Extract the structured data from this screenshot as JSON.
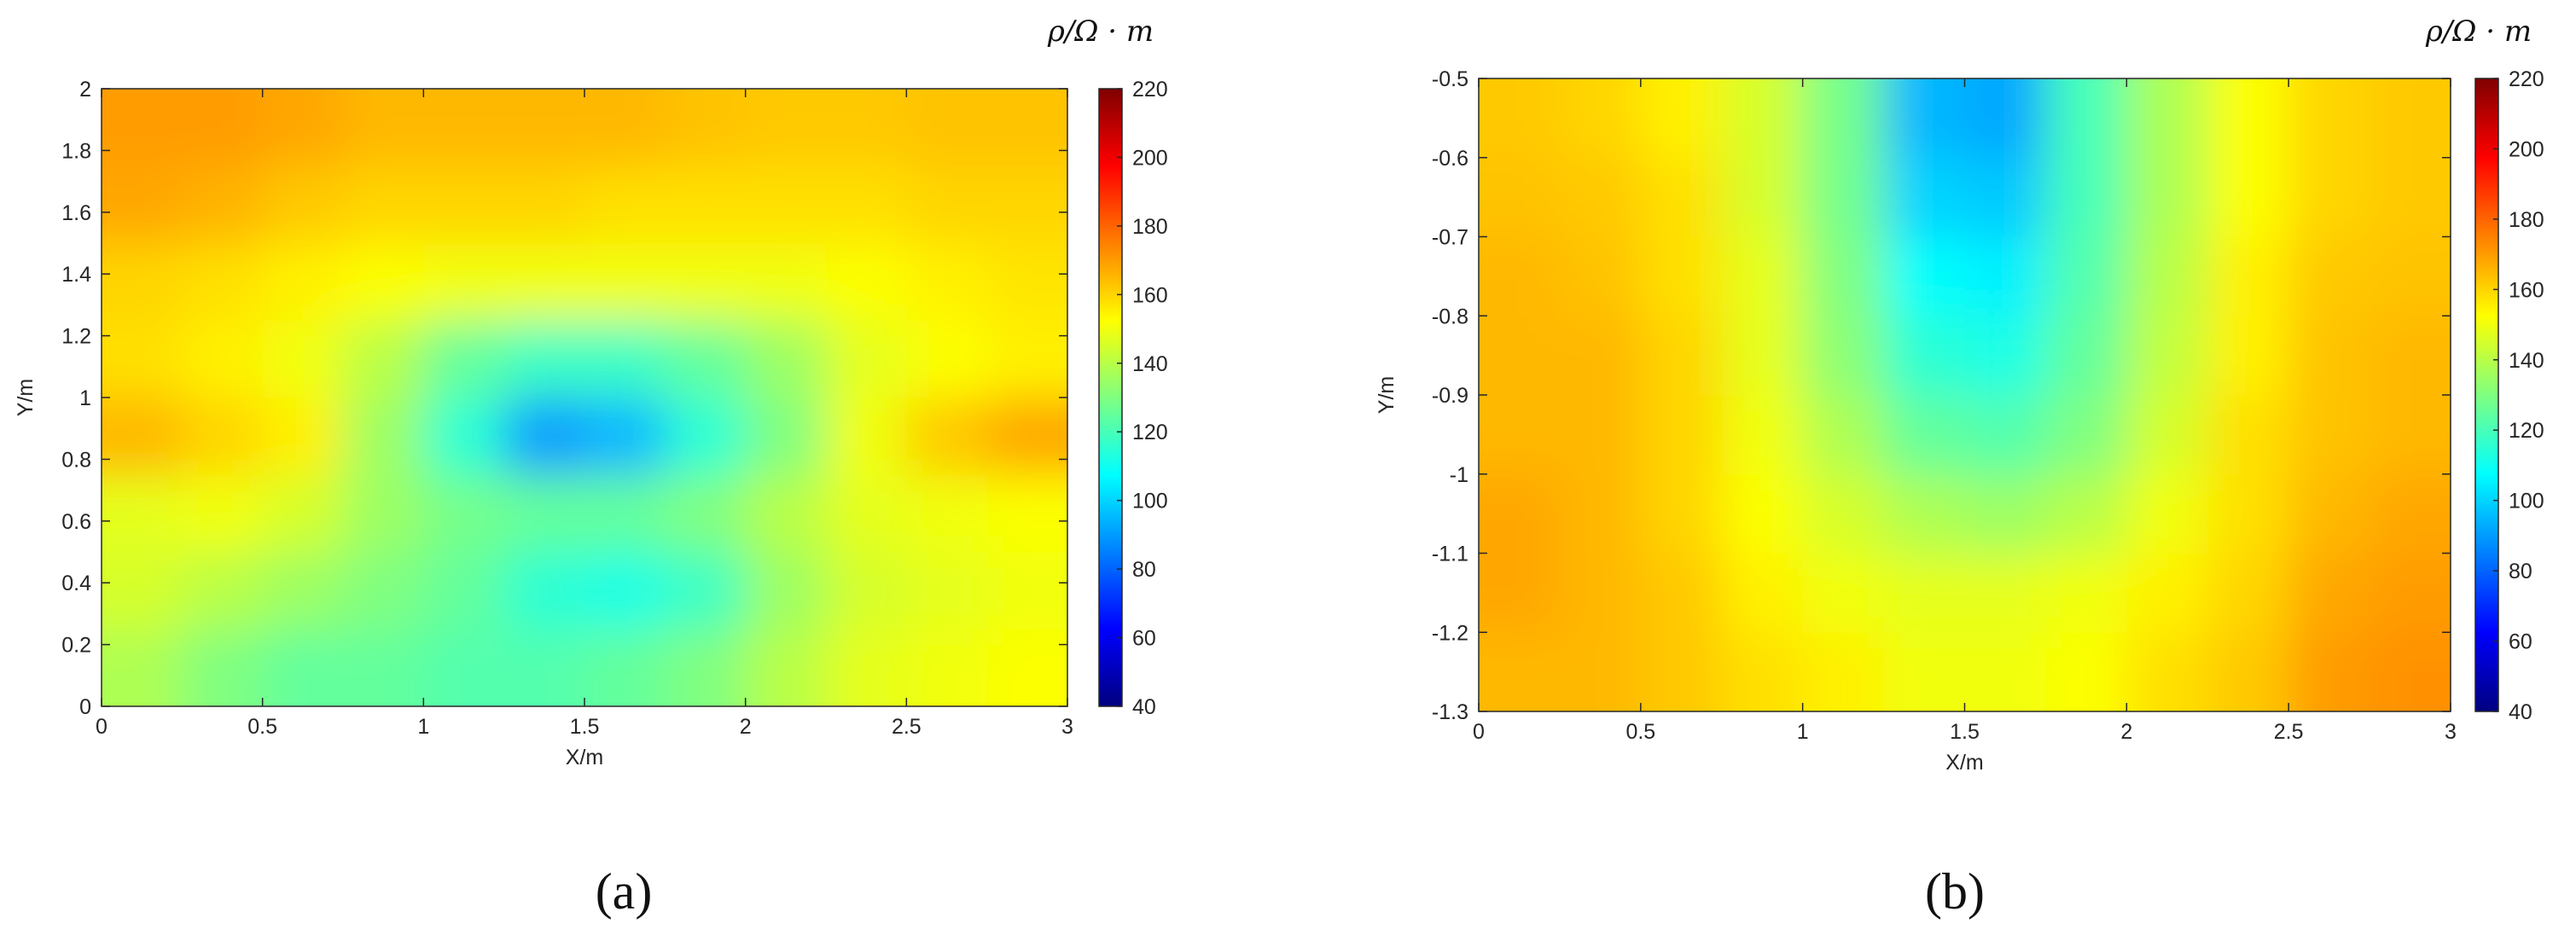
{
  "chart_data": [
    {
      "type": "heatmap",
      "colormap": "jet",
      "caption": "(a)",
      "colorbar_label": "ρ/Ω · m",
      "xlabel": "X/m",
      "ylabel": "Y/m",
      "x": [
        0.125,
        0.375,
        0.625,
        0.875,
        1.125,
        1.375,
        1.625,
        1.875,
        2.125,
        2.375,
        2.625,
        2.875
      ],
      "y": [
        0.125,
        0.375,
        0.625,
        0.875,
        1.125,
        1.375,
        1.625,
        1.875
      ],
      "z": [
        [
          138,
          130,
          125,
          125,
          122,
          122,
          125,
          130,
          140,
          148,
          150,
          152
        ],
        [
          145,
          140,
          135,
          130,
          125,
          115,
          112,
          118,
          135,
          145,
          148,
          150
        ],
        [
          148,
          150,
          145,
          135,
          128,
          125,
          125,
          130,
          140,
          148,
          150,
          152
        ],
        [
          165,
          160,
          155,
          135,
          115,
          90,
          95,
          115,
          130,
          150,
          162,
          168
        ],
        [
          158,
          155,
          150,
          140,
          125,
          118,
          118,
          125,
          135,
          148,
          152,
          155
        ],
        [
          160,
          158,
          155,
          152,
          150,
          150,
          150,
          150,
          150,
          152,
          155,
          157
        ],
        [
          168,
          166,
          162,
          160,
          160,
          160,
          158,
          158,
          158,
          158,
          160,
          160
        ],
        [
          170,
          170,
          168,
          165,
          165,
          165,
          165,
          163,
          162,
          162,
          163,
          163
        ]
      ],
      "xlim": [
        0,
        3
      ],
      "ylim": [
        0,
        2
      ],
      "xticks": [
        0,
        0.5,
        1,
        1.5,
        2,
        2.5,
        3
      ],
      "yticks": [
        0,
        0.2,
        0.4,
        0.6,
        0.8,
        1,
        1.2,
        1.4,
        1.6,
        1.8,
        2
      ],
      "clim": [
        40,
        220
      ],
      "cticks": [
        40,
        60,
        80,
        100,
        120,
        140,
        160,
        180,
        200,
        220
      ]
    },
    {
      "type": "heatmap",
      "colormap": "jet",
      "caption": "(b)",
      "colorbar_label": "ρ/Ω · m",
      "xlabel": "X/m",
      "ylabel": "Y/m",
      "x": [
        0.125,
        0.375,
        0.625,
        0.875,
        1.125,
        1.375,
        1.625,
        1.875,
        2.125,
        2.375,
        2.625,
        2.875
      ],
      "y": [
        -1.25,
        -1.15,
        -1.05,
        -0.95,
        -0.85,
        -0.75,
        -0.65,
        -0.55
      ],
      "z": [
        [
          165,
          165,
          162,
          158,
          155,
          150,
          150,
          152,
          158,
          162,
          170,
          172
        ],
        [
          168,
          165,
          162,
          155,
          150,
          148,
          148,
          150,
          155,
          160,
          168,
          170
        ],
        [
          168,
          165,
          160,
          152,
          145,
          138,
          135,
          140,
          150,
          158,
          165,
          168
        ],
        [
          165,
          165,
          160,
          150,
          138,
          125,
          122,
          130,
          145,
          158,
          163,
          165
        ],
        [
          165,
          165,
          160,
          148,
          132,
          115,
          112,
          125,
          142,
          155,
          163,
          165
        ],
        [
          165,
          163,
          158,
          148,
          130,
          108,
          105,
          122,
          140,
          155,
          162,
          163
        ],
        [
          163,
          162,
          158,
          145,
          128,
          100,
          98,
          120,
          138,
          152,
          160,
          162
        ],
        [
          162,
          160,
          155,
          145,
          128,
          95,
          92,
          120,
          138,
          152,
          160,
          162
        ]
      ],
      "xlim": [
        0,
        3
      ],
      "ylim": [
        -1.3,
        -0.5
      ],
      "xticks": [
        0,
        0.5,
        1,
        1.5,
        2,
        2.5,
        3
      ],
      "yticks": [
        -1.3,
        -1.2,
        -1.1,
        -1,
        -0.9,
        -0.8,
        -0.7,
        -0.6,
        -0.5
      ],
      "clim": [
        40,
        220
      ],
      "cticks": [
        40,
        60,
        80,
        100,
        120,
        140,
        160,
        180,
        200,
        220
      ]
    }
  ]
}
